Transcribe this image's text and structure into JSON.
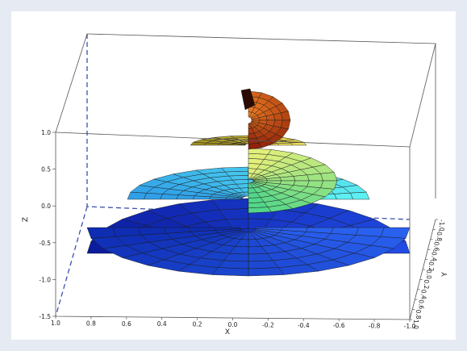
{
  "chart_data": {
    "type": "surface3d",
    "surface": "helicoid",
    "colormap": "jet",
    "grid_lines": false,
    "title": "",
    "xlabel": "X",
    "ylabel": "Y",
    "zlabel": "Z",
    "xlim": [
      -1.0,
      1.0
    ],
    "ylim": [
      -1.0,
      1.0
    ],
    "zlim": [
      -1.5,
      1.0
    ],
    "x_ticks": [
      "1.0",
      "0.8",
      "0.6",
      "0.4",
      "0.2",
      "0.0",
      "-0.2",
      "-0.4",
      "-0.6",
      "-0.8",
      "-1.0"
    ],
    "y_ticks": [
      "-1.0",
      "-0.8",
      "-0.6",
      "-0.4",
      "-0.2",
      "0.0",
      "0.2",
      "0.4",
      "0.6",
      "0.8",
      "1.0"
    ],
    "z_ticks": [
      "1.0",
      "0.5",
      "0.0",
      "-0.5",
      "-1.0",
      "-1.5"
    ],
    "levels": [
      {
        "z": 1.0,
        "radius": 0.25,
        "color": "#8e0000"
      },
      {
        "z": 0.55,
        "radius": 0.35,
        "color": "#d8c232"
      },
      {
        "z": 0.2,
        "radius": 0.55,
        "color": "#9fe65a"
      },
      {
        "z": 0.0,
        "radius": 0.7,
        "color": "#3fe8ec"
      },
      {
        "z": -0.7,
        "radius": 1.0,
        "color": "#1848e6"
      },
      {
        "z": -1.0,
        "radius": 1.0,
        "color": "#0a1a9a"
      }
    ]
  }
}
